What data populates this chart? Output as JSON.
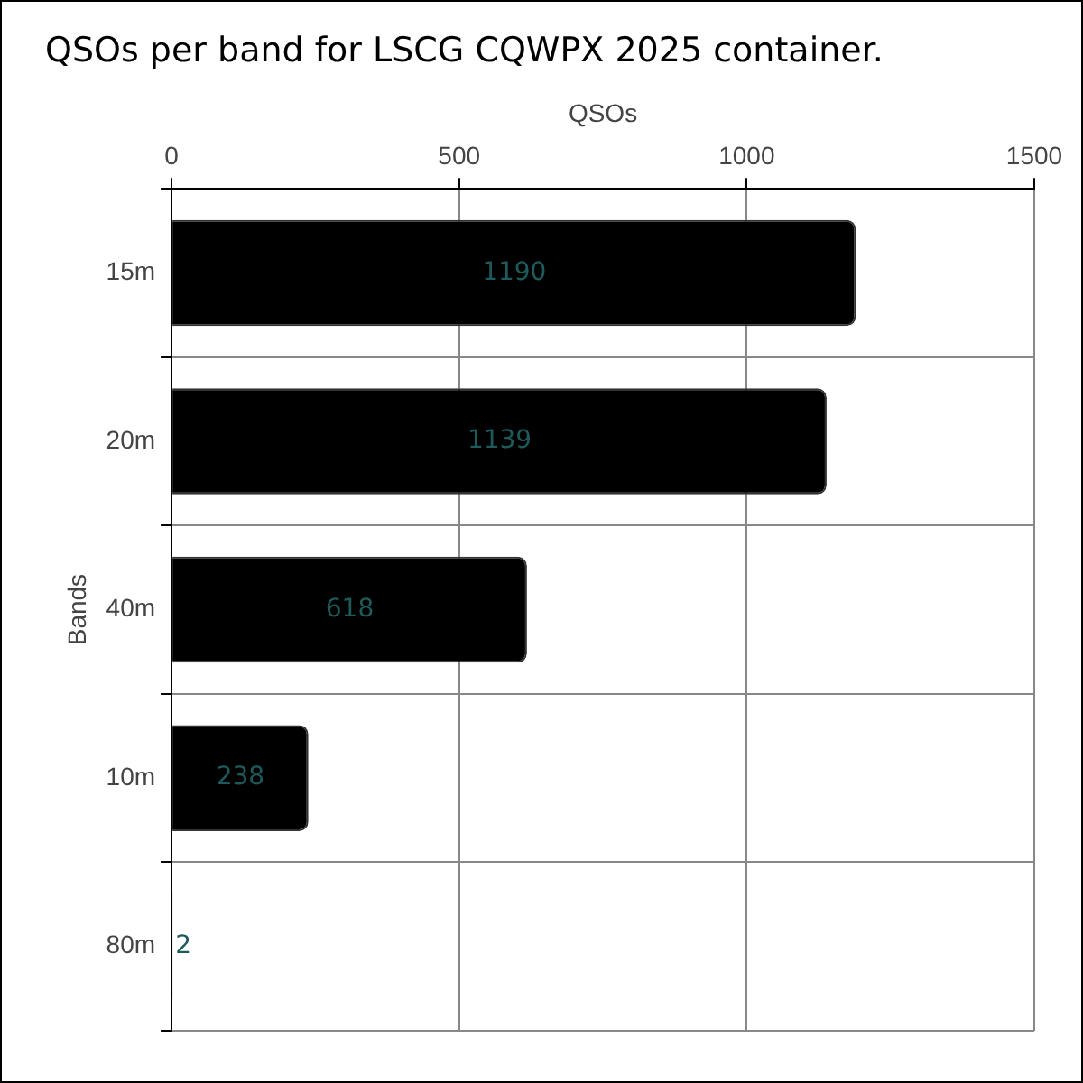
{
  "chart_data": {
    "type": "bar",
    "orientation": "horizontal",
    "title": "QSOs per band for LSCG CQWPX 2025 container.",
    "xlabel": "QSOs",
    "ylabel": "Bands",
    "categories": [
      "15m",
      "20m",
      "40m",
      "10m",
      "80m"
    ],
    "values": [
      1190,
      1139,
      618,
      238,
      2
    ],
    "color": "#000000",
    "xlim": [
      0,
      1500
    ],
    "xticks": [
      0,
      500,
      1000,
      1500
    ],
    "grid": true,
    "data_labels": true
  }
}
